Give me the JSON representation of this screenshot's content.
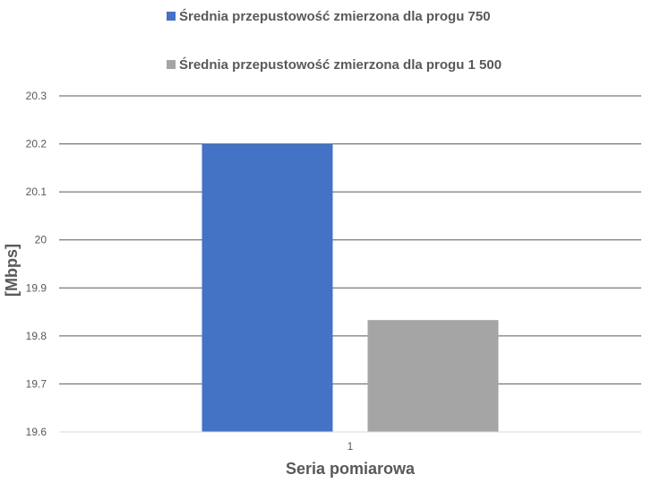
{
  "chart_data": {
    "type": "bar",
    "categories": [
      "1"
    ],
    "series": [
      {
        "name": "Średnia przepustowość zmierzona dla progu 750",
        "values": [
          20.2
        ],
        "color": "#4472C4"
      },
      {
        "name": "Średnia przepustowość zmierzona dla progu 1 500",
        "values": [
          19.833
        ],
        "color": "#A5A5A5"
      }
    ],
    "xlabel": "Seria pomiarowa",
    "ylabel": "[Mbps]",
    "ylim": [
      19.6,
      20.3
    ],
    "yticks": [
      "19.6",
      "19.7",
      "19.8",
      "19.9",
      "20",
      "20.1",
      "20.2",
      "20.3"
    ],
    "grid": true,
    "legend_position": "top"
  }
}
